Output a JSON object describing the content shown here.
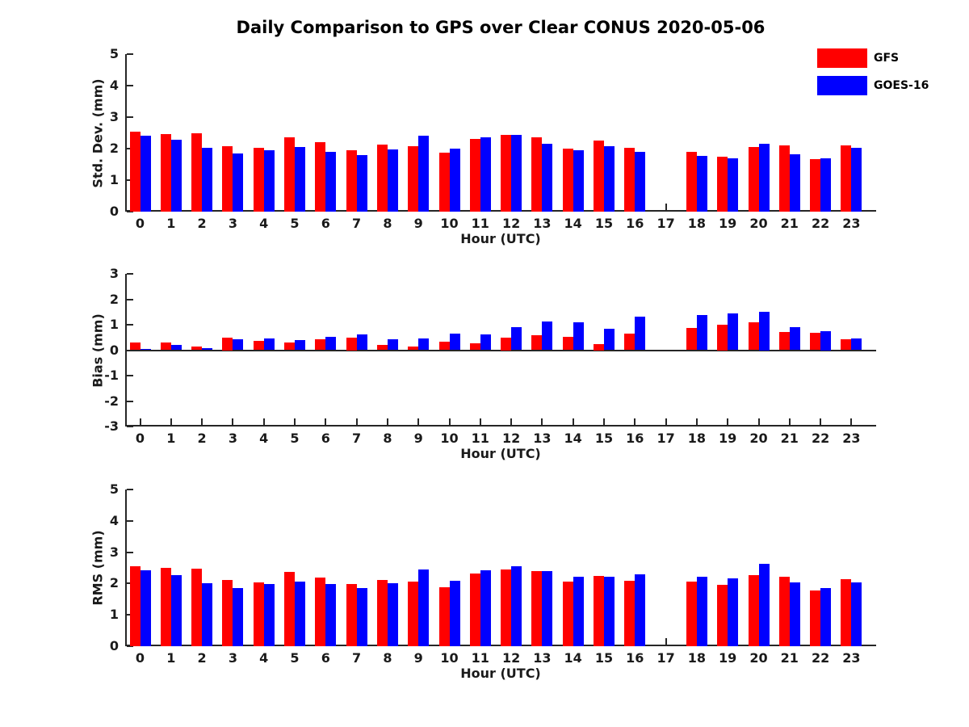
{
  "title": "Daily Comparison to GPS over Clear CONUS 2020-05-06",
  "colors": {
    "gfs": "#ff0000",
    "goes16": "#0000ff",
    "axis": "#262626"
  },
  "legend": {
    "items": [
      {
        "label": "GFS",
        "color": "#ff0000"
      },
      {
        "label": "GOES-16",
        "color": "#0000ff"
      }
    ]
  },
  "chart_data": [
    {
      "type": "bar",
      "ylabel": "Std. Dev. (mm)",
      "xlabel": "Hour (UTC)",
      "ylim": [
        0,
        5
      ],
      "yticks": [
        0,
        1,
        2,
        3,
        4,
        5
      ],
      "grid": false,
      "legend_position": "outside-top-right",
      "categories": [
        "0",
        "1",
        "2",
        "3",
        "4",
        "5",
        "6",
        "7",
        "8",
        "9",
        "10",
        "11",
        "12",
        "13",
        "14",
        "15",
        "16",
        "17",
        "18",
        "19",
        "20",
        "21",
        "22",
        "23"
      ],
      "series": [
        {
          "name": "GFS",
          "color": "#ff0000",
          "values": [
            2.55,
            2.47,
            2.5,
            2.07,
            2.02,
            2.37,
            2.2,
            1.95,
            2.12,
            2.07,
            1.87,
            2.32,
            2.44,
            2.35,
            2.0,
            2.26,
            2.03,
            null,
            1.89,
            1.74,
            2.04,
            2.1,
            1.66,
            2.11
          ]
        },
        {
          "name": "GOES-16",
          "color": "#0000ff",
          "values": [
            2.42,
            2.27,
            2.02,
            1.85,
            1.94,
            2.05,
            1.91,
            1.79,
            1.97,
            2.42,
            1.99,
            2.35,
            2.44,
            2.15,
            1.94,
            2.07,
            1.89,
            null,
            1.77,
            1.68,
            2.15,
            1.81,
            1.68,
            2.02
          ]
        }
      ]
    },
    {
      "type": "bar",
      "ylabel": "Bias (mm)",
      "xlabel": "Hour (UTC)",
      "ylim": [
        -3,
        3
      ],
      "yticks": [
        -3,
        -2,
        -1,
        0,
        1,
        2,
        3
      ],
      "grid": false,
      "categories": [
        "0",
        "1",
        "2",
        "3",
        "4",
        "5",
        "6",
        "7",
        "8",
        "9",
        "10",
        "11",
        "12",
        "13",
        "14",
        "15",
        "16",
        "17",
        "18",
        "19",
        "20",
        "21",
        "22",
        "23"
      ],
      "series": [
        {
          "name": "GFS",
          "color": "#ff0000",
          "values": [
            0.3,
            0.3,
            0.13,
            0.5,
            0.35,
            0.31,
            0.42,
            0.5,
            0.22,
            0.15,
            0.32,
            0.27,
            0.5,
            0.6,
            0.52,
            0.25,
            0.65,
            null,
            0.88,
            1.0,
            1.08,
            0.7,
            0.68,
            0.42
          ]
        },
        {
          "name": "GOES-16",
          "color": "#0000ff",
          "values": [
            0.04,
            0.2,
            0.07,
            0.43,
            0.45,
            0.41,
            0.53,
            0.62,
            0.42,
            0.45,
            0.65,
            0.62,
            0.9,
            1.13,
            1.1,
            0.85,
            1.32,
            null,
            1.38,
            1.43,
            1.5,
            0.9,
            0.75,
            0.47
          ]
        }
      ]
    },
    {
      "type": "bar",
      "ylabel": "RMS (mm)",
      "xlabel": "Hour (UTC)",
      "ylim": [
        0,
        5
      ],
      "yticks": [
        0,
        1,
        2,
        3,
        4,
        5
      ],
      "grid": false,
      "categories": [
        "0",
        "1",
        "2",
        "3",
        "4",
        "5",
        "6",
        "7",
        "8",
        "9",
        "10",
        "11",
        "12",
        "13",
        "14",
        "15",
        "16",
        "17",
        "18",
        "19",
        "20",
        "21",
        "22",
        "23"
      ],
      "series": [
        {
          "name": "GFS",
          "color": "#ff0000",
          "values": [
            2.55,
            2.51,
            2.48,
            2.12,
            2.04,
            2.38,
            2.2,
            1.99,
            2.12,
            2.06,
            1.89,
            2.32,
            2.45,
            2.4,
            2.05,
            2.25,
            2.1,
            null,
            2.07,
            1.97,
            2.27,
            2.21,
            1.79,
            2.13
          ]
        },
        {
          "name": "GOES-16",
          "color": "#0000ff",
          "values": [
            2.41,
            2.27,
            2.02,
            1.86,
            1.99,
            2.06,
            1.98,
            1.86,
            2.02,
            2.45,
            2.09,
            2.43,
            2.56,
            2.4,
            2.22,
            2.22,
            2.29,
            null,
            2.22,
            2.16,
            2.62,
            2.03,
            1.85,
            2.04
          ]
        }
      ]
    }
  ]
}
